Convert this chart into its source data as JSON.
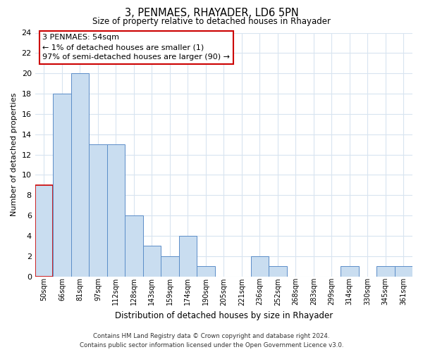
{
  "title": "3, PENMAES, RHAYADER, LD6 5PN",
  "subtitle": "Size of property relative to detached houses in Rhayader",
  "xlabel": "Distribution of detached houses by size in Rhayader",
  "ylabel": "Number of detached properties",
  "bin_labels": [
    "50sqm",
    "66sqm",
    "81sqm",
    "97sqm",
    "112sqm",
    "128sqm",
    "143sqm",
    "159sqm",
    "174sqm",
    "190sqm",
    "205sqm",
    "221sqm",
    "236sqm",
    "252sqm",
    "268sqm",
    "283sqm",
    "299sqm",
    "314sqm",
    "330sqm",
    "345sqm",
    "361sqm"
  ],
  "bar_values": [
    9,
    18,
    20,
    13,
    13,
    6,
    3,
    2,
    4,
    1,
    0,
    0,
    2,
    1,
    0,
    0,
    0,
    1,
    0,
    1,
    1
  ],
  "bar_color": "#c9ddf0",
  "bar_edge_color": "#5b8dc8",
  "highlight_bar_index": 0,
  "highlight_edge_color": "#cc0000",
  "ylim": [
    0,
    24
  ],
  "yticks": [
    0,
    2,
    4,
    6,
    8,
    10,
    12,
    14,
    16,
    18,
    20,
    22,
    24
  ],
  "annotation_title": "3 PENMAES: 54sqm",
  "annotation_line1": "← 1% of detached houses are smaller (1)",
  "annotation_line2": "97% of semi-detached houses are larger (90) →",
  "annotation_box_color": "#ffffff",
  "annotation_box_edge": "#cc0000",
  "footer_line1": "Contains HM Land Registry data © Crown copyright and database right 2024.",
  "footer_line2": "Contains public sector information licensed under the Open Government Licence v3.0.",
  "grid_color": "#d8e4f0",
  "background_color": "#ffffff"
}
